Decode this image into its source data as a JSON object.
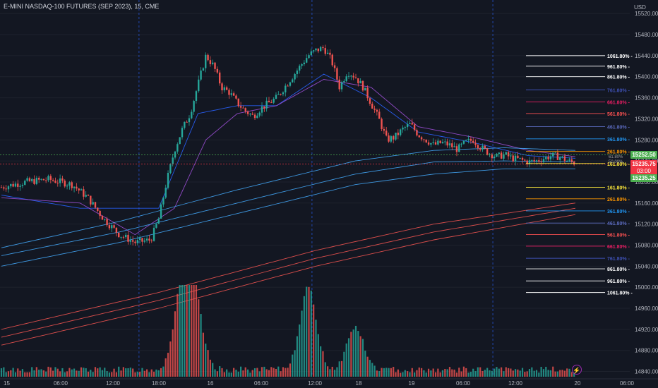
{
  "header": {
    "title": "E-MINI NASDAQ-100 FUTURES (SEP 2023), 15, CME",
    "currency": "USD"
  },
  "colors": {
    "background": "#131722",
    "bull": "#26a69a",
    "bear": "#ef5350",
    "price_tag_green": "#4caf50",
    "price_tag_red": "#f23645"
  },
  "price_tags": [
    {
      "label": "15252.50",
      "kind": "green"
    },
    {
      "label": "15235.75",
      "kind": "red"
    },
    {
      "label": "03:00",
      "kind": "red-sub"
    },
    {
      "label": "15235.25",
      "kind": "green"
    }
  ],
  "alert_icon": "lightning-icon",
  "chart_data": {
    "type": "candlestick",
    "title": "E-MINI NASDAQ-100 FUTURES (SEP 2023), 15, CME",
    "y_ticks": [
      "15520.00",
      "15480.00",
      "15440.00",
      "15400.00",
      "15360.00",
      "15320.00",
      "15280.00",
      "15240.00",
      "15200.00",
      "15160.00",
      "15120.00",
      "15080.00",
      "15040.00",
      "15000.00",
      "14960.00",
      "14920.00",
      "14880.00",
      "14840.00"
    ],
    "y_range": [
      14830,
      15535
    ],
    "x_ticks": [
      "15",
      "06:00",
      "12:00",
      "18:00",
      "16",
      "06:00",
      "12:00",
      "18",
      "19",
      "06:00",
      "12:00",
      "20",
      "06:00"
    ],
    "close_path": [
      [
        0,
        15190
      ],
      [
        3,
        15200
      ],
      [
        6,
        15205
      ],
      [
        9,
        15195
      ],
      [
        11,
        15170
      ],
      [
        13,
        15130
      ],
      [
        15,
        15100
      ],
      [
        17,
        15085
      ],
      [
        19,
        15090
      ],
      [
        20,
        15130
      ],
      [
        21,
        15200
      ],
      [
        22,
        15260
      ],
      [
        23,
        15300
      ],
      [
        24,
        15330
      ],
      [
        25,
        15385
      ],
      [
        26,
        15440
      ],
      [
        27,
        15420
      ],
      [
        28,
        15380
      ],
      [
        29,
        15370
      ],
      [
        30,
        15350
      ],
      [
        31,
        15335
      ],
      [
        32,
        15325
      ],
      [
        33,
        15340
      ],
      [
        34,
        15350
      ],
      [
        35,
        15360
      ],
      [
        36,
        15380
      ],
      [
        37,
        15400
      ],
      [
        38,
        15420
      ],
      [
        39,
        15440
      ],
      [
        40,
        15450
      ],
      [
        41,
        15455
      ],
      [
        42,
        15430
      ],
      [
        43,
        15380
      ],
      [
        44,
        15410
      ],
      [
        45,
        15400
      ],
      [
        46,
        15380
      ],
      [
        47,
        15350
      ],
      [
        48,
        15320
      ],
      [
        49,
        15280
      ],
      [
        50,
        15285
      ],
      [
        51,
        15300
      ],
      [
        52,
        15310
      ],
      [
        53,
        15290
      ],
      [
        54,
        15280
      ],
      [
        55,
        15270
      ],
      [
        56,
        15275
      ],
      [
        57,
        15270
      ],
      [
        58,
        15262
      ],
      [
        59,
        15275
      ],
      [
        60,
        15280
      ],
      [
        61,
        15265
      ],
      [
        62,
        15255
      ],
      [
        63,
        15248
      ],
      [
        64,
        15252
      ],
      [
        65,
        15245
      ],
      [
        66,
        15242
      ],
      [
        67,
        15238
      ],
      [
        68,
        15240
      ],
      [
        69,
        15245
      ],
      [
        70,
        15250
      ],
      [
        71,
        15248
      ],
      [
        72,
        15240
      ],
      [
        73,
        15236
      ]
    ],
    "moving_averages": {
      "ema_fast": {
        "color": "#2962ff",
        "points": [
          [
            0,
            15175
          ],
          [
            10,
            15150
          ],
          [
            20,
            15150
          ],
          [
            25,
            15330
          ],
          [
            30,
            15345
          ],
          [
            35,
            15345
          ],
          [
            41,
            15405
          ],
          [
            47,
            15360
          ],
          [
            53,
            15295
          ],
          [
            60,
            15275
          ],
          [
            67,
            15250
          ],
          [
            73,
            15245
          ]
        ]
      },
      "ema_slow": {
        "color": "#9c4fd6",
        "points": [
          [
            0,
            15170
          ],
          [
            10,
            15160
          ],
          [
            17,
            15100
          ],
          [
            22,
            15150
          ],
          [
            26,
            15280
          ],
          [
            30,
            15330
          ],
          [
            35,
            15345
          ],
          [
            41,
            15395
          ],
          [
            47,
            15380
          ],
          [
            53,
            15305
          ],
          [
            60,
            15285
          ],
          [
            67,
            15260
          ],
          [
            73,
            15248
          ]
        ]
      },
      "band_upper": {
        "color": "#42a5f5",
        "points": [
          [
            0,
            15075
          ],
          [
            15,
            15125
          ],
          [
            30,
            15185
          ],
          [
            45,
            15240
          ],
          [
            55,
            15260
          ],
          [
            64,
            15265
          ],
          [
            73,
            15260
          ]
        ]
      },
      "band_mid": {
        "color": "#42a5f5",
        "points": [
          [
            0,
            15060
          ],
          [
            15,
            15105
          ],
          [
            30,
            15160
          ],
          [
            45,
            15215
          ],
          [
            55,
            15238
          ],
          [
            64,
            15240
          ],
          [
            73,
            15238
          ]
        ]
      },
      "band_lower": {
        "color": "#42a5f5",
        "points": [
          [
            0,
            15040
          ],
          [
            15,
            15085
          ],
          [
            30,
            15140
          ],
          [
            45,
            15195
          ],
          [
            55,
            15215
          ],
          [
            64,
            15225
          ],
          [
            73,
            15225
          ]
        ]
      },
      "red_upper": {
        "color": "#ef5350",
        "points": [
          [
            0,
            14920
          ],
          [
            20,
            14990
          ],
          [
            40,
            15070
          ],
          [
            55,
            15120
          ],
          [
            73,
            15160
          ]
        ]
      },
      "red_mid": {
        "color": "#ef5350",
        "points": [
          [
            0,
            14905
          ],
          [
            20,
            14975
          ],
          [
            40,
            15055
          ],
          [
            55,
            15105
          ],
          [
            73,
            15150
          ]
        ]
      },
      "red_lower": {
        "color": "#ef5350",
        "points": [
          [
            0,
            14890
          ],
          [
            20,
            14960
          ],
          [
            40,
            15040
          ],
          [
            55,
            15090
          ],
          [
            73,
            15138
          ]
        ]
      }
    },
    "fib_levels": [
      {
        "label": "1061.80%",
        "price": 15440,
        "color": "#ffffff"
      },
      {
        "label": "961.80%",
        "price": 15420,
        "color": "#ffffff"
      },
      {
        "label": "861.80%",
        "price": 15400,
        "color": "#ffffff"
      },
      {
        "label": "761.80%",
        "price": 15375,
        "color": "#3f51b5"
      },
      {
        "label": "661.80%",
        "price": 15352,
        "color": "#e91e63"
      },
      {
        "label": "561.80%",
        "price": 15330,
        "color": "#ff5252"
      },
      {
        "label": "461.80%",
        "price": 15305,
        "color": "#5c6bc0"
      },
      {
        "label": "361.80%",
        "price": 15282,
        "color": "#2196f3"
      },
      {
        "label": "261.80%",
        "price": 15258,
        "color": "#ff9800"
      },
      {
        "label": "161.80%",
        "price": 15235,
        "color": "#ffeb3b"
      },
      {
        "label": "161.80%",
        "price": 15190,
        "color": "#ffeb3b"
      },
      {
        "label": "261.80%",
        "price": 15168,
        "color": "#ff9800"
      },
      {
        "label": "361.80%",
        "price": 15145,
        "color": "#2196f3"
      },
      {
        "label": "461.80%",
        "price": 15122,
        "color": "#5c6bc0"
      },
      {
        "label": "561.80%",
        "price": 15100,
        "color": "#ff5252"
      },
      {
        "label": "661.80%",
        "price": 15078,
        "color": "#e91e63"
      },
      {
        "label": "761.80%",
        "price": 15055,
        "color": "#3f51b5"
      },
      {
        "label": "861.80%",
        "price": 15035,
        "color": "#ffffff"
      },
      {
        "label": "961.80%",
        "price": 15012,
        "color": "#ffffff"
      },
      {
        "label": "1061.80%",
        "price": 14990,
        "color": "#ffffff"
      }
    ],
    "mid_labels": [
      "61.80%",
      "50.00%"
    ],
    "session_dividers": [
      17.5,
      39.5,
      62.5
    ],
    "volume_peaks": [
      {
        "x": 23,
        "v": 1
      },
      {
        "x": 24.5,
        "v": 0.85
      },
      {
        "x": 39,
        "v": 1.05
      },
      {
        "x": 45,
        "v": 0.55
      }
    ],
    "grid": true
  }
}
